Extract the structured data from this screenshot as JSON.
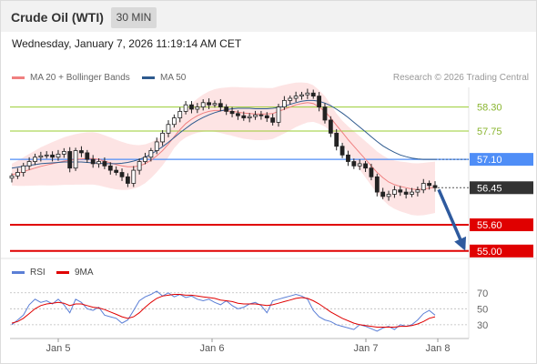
{
  "header": {
    "title": "Crude Oil (WTI)",
    "timeframe": "30 MIN"
  },
  "datetime": "Wednesday, January 7, 2026 11:19:14 AM CET",
  "legend": {
    "ma20_label": "MA 20 + Bollinger Bands",
    "ma20_color": "#f08080",
    "ma50_label": "MA 50",
    "ma50_color": "#2e5a8e",
    "credit": "Research © 2026 Trading Central"
  },
  "rsi_legend": {
    "rsi_label": "RSI",
    "rsi_color": "#5b7fd6",
    "ma_label": "9MA",
    "ma_color": "#e00000"
  },
  "chart_data": [
    {
      "type": "candlestick",
      "title": "Crude Oil (WTI) 30 MIN",
      "ylim": [
        54.85,
        58.75
      ],
      "x_ticks": [
        "Jan 5",
        "Jan 6",
        "Jan 7",
        "Jan 8"
      ],
      "levels": [
        {
          "value": 58.3,
          "label": "58.30",
          "kind": "resistance",
          "color": "#9acd32"
        },
        {
          "value": 57.75,
          "label": "57.75",
          "kind": "resistance",
          "color": "#9acd32"
        },
        {
          "value": 57.1,
          "label": "57.10",
          "kind": "pivot",
          "color": "#4f8ef7"
        },
        {
          "value": 56.45,
          "label": "56.45",
          "kind": "last-price",
          "color": "#333333"
        },
        {
          "value": 55.6,
          "label": "55.60",
          "kind": "support",
          "color": "#e00000"
        },
        {
          "value": 55.0,
          "label": "55.00",
          "kind": "target",
          "color": "#e00000"
        }
      ],
      "close_series": [
        56.72,
        56.8,
        56.95,
        57.05,
        57.15,
        57.18,
        57.2,
        57.15,
        57.22,
        57.28,
        56.9,
        57.3,
        57.25,
        57.1,
        57.0,
        57.05,
        56.95,
        56.85,
        56.8,
        56.7,
        56.55,
        56.85,
        57.05,
        57.15,
        57.3,
        57.5,
        57.7,
        57.9,
        58.05,
        58.2,
        58.35,
        58.25,
        58.3,
        58.4,
        58.35,
        58.38,
        58.3,
        58.2,
        58.15,
        58.1,
        58.05,
        58.08,
        58.12,
        58.1,
        58.05,
        57.95,
        58.3,
        58.45,
        58.5,
        58.55,
        58.58,
        58.62,
        58.55,
        58.3,
        58.0,
        57.7,
        57.4,
        57.2,
        57.05,
        56.95,
        57.0,
        56.9,
        56.7,
        56.35,
        56.25,
        56.3,
        56.4,
        56.35,
        56.3,
        56.35,
        56.4,
        56.55,
        56.5,
        56.45
      ],
      "ma20_series": [
        56.75,
        56.78,
        56.82,
        56.86,
        56.9,
        56.94,
        56.97,
        57.0,
        57.03,
        57.06,
        57.08,
        57.1,
        57.11,
        57.12,
        57.12,
        57.1,
        57.06,
        57.02,
        56.98,
        56.95,
        56.93,
        56.93,
        56.95,
        57.0,
        57.08,
        57.18,
        57.3,
        57.45,
        57.62,
        57.78,
        57.92,
        58.02,
        58.1,
        58.16,
        58.2,
        58.22,
        58.22,
        58.21,
        58.2,
        58.18,
        58.16,
        58.15,
        58.14,
        58.14,
        58.14,
        58.15,
        58.2,
        58.25,
        58.3,
        58.35,
        58.38,
        58.4,
        58.38,
        58.3,
        58.2,
        58.05,
        57.88,
        57.72,
        57.55,
        57.4,
        57.25,
        57.1,
        56.95,
        56.8,
        56.68,
        56.58,
        56.52,
        56.48,
        56.45,
        56.42,
        56.41,
        56.42,
        56.44,
        56.46
      ],
      "ma50_series": [
        56.9,
        56.92,
        56.94,
        56.96,
        56.98,
        57.0,
        57.01,
        57.02,
        57.03,
        57.04,
        57.04,
        57.04,
        57.04,
        57.03,
        57.02,
        57.01,
        57.0,
        57.0,
        57.0,
        57.01,
        57.03,
        57.06,
        57.1,
        57.15,
        57.22,
        57.3,
        57.39,
        57.49,
        57.6,
        57.71,
        57.81,
        57.91,
        57.99,
        58.06,
        58.12,
        58.17,
        58.21,
        58.24,
        58.26,
        58.27,
        58.27,
        58.27,
        58.26,
        58.26,
        58.26,
        58.27,
        58.29,
        58.32,
        58.36,
        58.4,
        58.43,
        58.45,
        58.45,
        58.43,
        58.39,
        58.33,
        58.25,
        58.16,
        58.06,
        57.95,
        57.84,
        57.73,
        57.62,
        57.51,
        57.41,
        57.33,
        57.26,
        57.2,
        57.16,
        57.13,
        57.11,
        57.1,
        57.1,
        57.1
      ],
      "forecast": {
        "from": 56.45,
        "to": 55.0,
        "direction": "down"
      }
    },
    {
      "type": "line",
      "title": "RSI",
      "ylim": [
        15,
        80
      ],
      "y_ticks": [
        70,
        50,
        30
      ],
      "series": [
        {
          "name": "RSI",
          "values": [
            30,
            36,
            42,
            55,
            62,
            58,
            60,
            56,
            62,
            55,
            45,
            62,
            58,
            50,
            48,
            52,
            42,
            40,
            38,
            32,
            36,
            48,
            60,
            65,
            68,
            72,
            66,
            70,
            65,
            68,
            64,
            66,
            62,
            60,
            62,
            58,
            55,
            60,
            54,
            50,
            52,
            56,
            58,
            54,
            45,
            60,
            62,
            64,
            66,
            68,
            66,
            62,
            48,
            40,
            36,
            34,
            30,
            28,
            26,
            24,
            30,
            28,
            25,
            22,
            26,
            28,
            24,
            30,
            28,
            30,
            36,
            44,
            48,
            42
          ]
        },
        {
          "name": "9MA",
          "values": [
            32,
            34,
            38,
            44,
            50,
            54,
            56,
            57,
            58,
            57,
            54,
            56,
            56,
            54,
            52,
            51,
            49,
            46,
            43,
            40,
            38,
            40,
            45,
            52,
            58,
            63,
            66,
            67,
            68,
            68,
            67,
            67,
            66,
            65,
            64,
            63,
            61,
            60,
            59,
            57,
            56,
            56,
            56,
            55,
            54,
            55,
            57,
            59,
            61,
            63,
            64,
            63,
            60,
            56,
            51,
            46,
            42,
            38,
            35,
            32,
            30,
            29,
            28,
            27,
            27,
            27,
            27,
            28,
            28,
            29,
            31,
            34,
            38,
            40
          ]
        }
      ]
    }
  ]
}
